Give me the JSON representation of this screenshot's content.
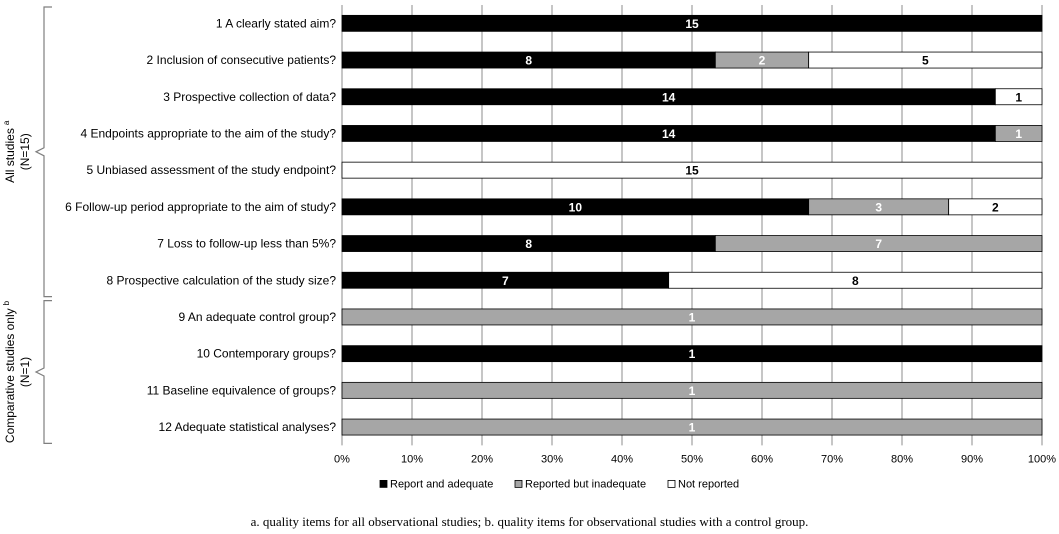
{
  "chart_data": {
    "type": "bar",
    "orientation": "horizontal",
    "stacked": "percent",
    "groups": [
      {
        "label": "All  studies",
        "superscript": "a",
        "n_label": "(N=15)",
        "rows": [
          0,
          7
        ]
      },
      {
        "label": "Comparative studies only",
        "superscript": "b",
        "n_label": "(N=1)",
        "rows": [
          8,
          11
        ]
      }
    ],
    "categories": [
      "1 A clearly stated aim?",
      "2 Inclusion of consecutive patients?",
      "3 Prospective collection of data?",
      "4 Endpoints appropriate to the aim of the study?",
      "5 Unbiased assessment of the study endpoint?",
      "6 Follow-up period appropriate to the aim of study?",
      "7 Loss to follow-up less than 5%?",
      "8 Prospective calculation of the study size?",
      "9 An adequate control group?",
      "10 Contemporary groups?",
      "11 Baseline equivalence of groups?",
      "12 Adequate statistical analyses?"
    ],
    "series": [
      {
        "name": "Report and adequate",
        "color": "#000000",
        "label_color": "#ffffff",
        "values": [
          15,
          8,
          14,
          14,
          0,
          10,
          8,
          7,
          0,
          1,
          0,
          0
        ]
      },
      {
        "name": "Reported but inadequate",
        "color": "#a6a6a6",
        "label_color": "#ffffff",
        "values": [
          0,
          2,
          0,
          1,
          0,
          3,
          7,
          0,
          1,
          0,
          1,
          1
        ]
      },
      {
        "name": "Not reported",
        "color": "#ffffff",
        "label_color": "#000000",
        "values": [
          0,
          5,
          1,
          0,
          15,
          2,
          0,
          8,
          0,
          0,
          0,
          0
        ]
      }
    ],
    "x_ticks": [
      "0%",
      "10%",
      "20%",
      "30%",
      "40%",
      "50%",
      "60%",
      "70%",
      "80%",
      "90%",
      "100%"
    ],
    "xlim": [
      0,
      100
    ],
    "grid": "vertical",
    "legend_position": "bottom"
  },
  "caption": "a. quality items for all observational studies; b. quality items for observational studies with a control group."
}
